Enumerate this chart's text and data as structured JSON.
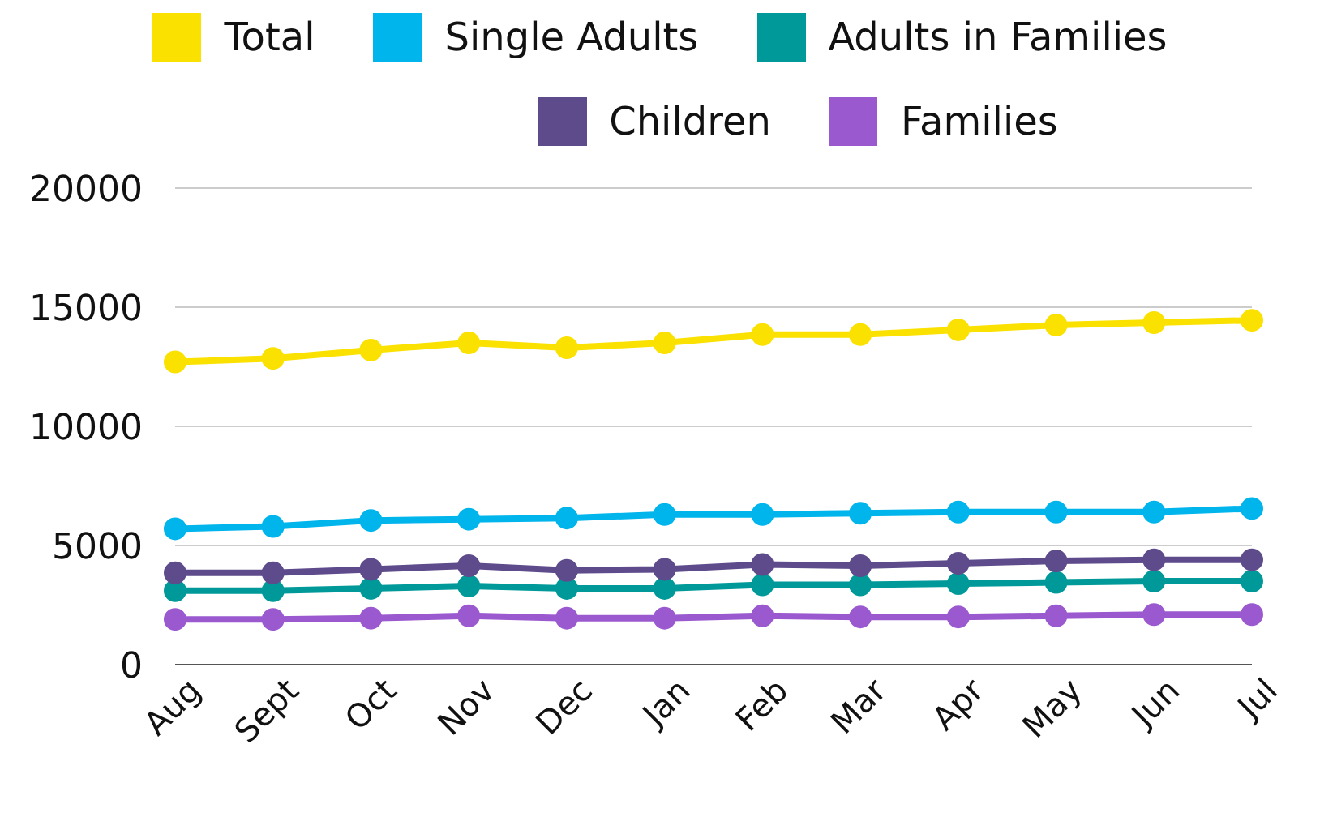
{
  "chart_data": {
    "type": "line",
    "categories": [
      "Aug",
      "Sept",
      "Oct",
      "Nov",
      "Dec",
      "Jan",
      "Feb",
      "Mar",
      "Apr",
      "May",
      "Jun",
      "Jul"
    ],
    "series": [
      {
        "name": "Total",
        "color": "#fae100",
        "values": [
          12700,
          12850,
          13200,
          13500,
          13300,
          13500,
          13850,
          13850,
          14050,
          14250,
          14350,
          14450
        ]
      },
      {
        "name": "Single Adults",
        "color": "#00b4ec",
        "values": [
          5700,
          5800,
          6050,
          6100,
          6150,
          6300,
          6300,
          6350,
          6400,
          6400,
          6400,
          6550
        ]
      },
      {
        "name": "Adults in Families",
        "color": "#009999",
        "values": [
          3100,
          3100,
          3200,
          3300,
          3200,
          3200,
          3350,
          3350,
          3400,
          3450,
          3500,
          3500
        ]
      },
      {
        "name": "Children",
        "color": "#5e4b8b",
        "values": [
          3850,
          3850,
          4000,
          4150,
          3950,
          4000,
          4200,
          4150,
          4250,
          4350,
          4400,
          4400
        ]
      },
      {
        "name": "Families",
        "color": "#9b59d0",
        "values": [
          1900,
          1900,
          1950,
          2050,
          1950,
          1950,
          2050,
          2000,
          2000,
          2050,
          2100,
          2100
        ]
      }
    ],
    "ylim": [
      0,
      20000
    ],
    "yticks": [
      0,
      5000,
      10000,
      15000,
      20000
    ],
    "grid": "y",
    "legend": "top",
    "marker": "circle",
    "line_style": "solid"
  }
}
